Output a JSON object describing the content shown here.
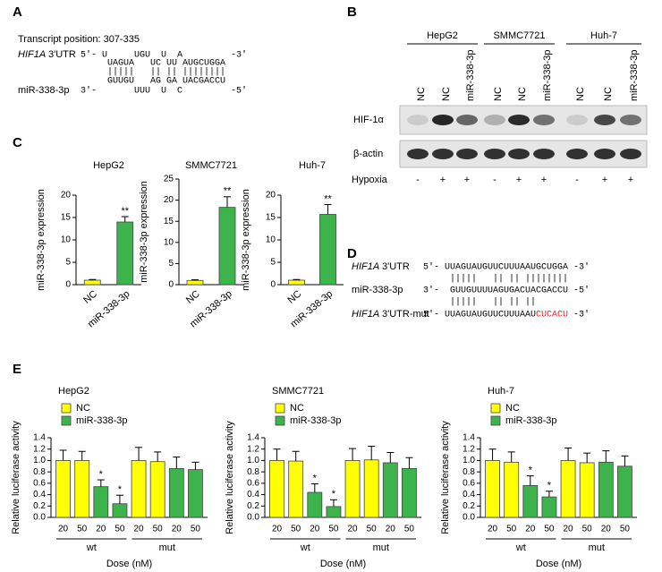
{
  "panel_labels": [
    "A",
    "B",
    "C",
    "D",
    "E"
  ],
  "panel_a": {
    "position": "Transcript position: 307-335",
    "gene": "HIF1A",
    "utr": "3'UTR",
    "mirna": "miR-338-3p",
    "lines": [
      "5'- U     UGU  U  A         -3'",
      "UAGUA   UC UU AUGCUGGA",
      "|||||   || || ||||||||",
      "GUUGU   AG GA UACGACCU",
      "3'-       UUU  U  C         -5'"
    ]
  },
  "panel_b": {
    "cell_lines": [
      "HepG2",
      "SMMC7721",
      "Huh-7"
    ],
    "lanes": [
      "NC",
      "NC",
      "miR-338-3p",
      "NC",
      "NC",
      "miR-338-3p",
      "NC",
      "NC",
      "miR-338-3p"
    ],
    "rows": [
      "HIF-1α",
      "β-actin"
    ],
    "hypoxia_label": "Hypoxia",
    "hypoxia": [
      "-",
      "+",
      "+",
      "-",
      "+",
      "+",
      "-",
      "+",
      "+"
    ]
  },
  "panel_d": {
    "utr_gene": "HIF1A",
    "utr_label": "3'UTR",
    "utr_sequence": "5'- UUAGUAUGUUCUUUAAUGCUGGA -3'",
    "pairs_top": "|||||   || || ||||||||",
    "mirna_label": "miR-338-3p",
    "mirna_sequence": "3'-  GUUGUUUUAGUGACUACGACCU -5'",
    "pairs_bottom": "|||||   || || ||",
    "mut_gene": "HIF1A",
    "mut_label": "3'UTR-mut",
    "mut_sequence": "5'- UUAGUAUGUUCUUUAAU",
    "mut_changed": "CUCACU",
    "mut_end": " -3'"
  },
  "chart_data": [
    {
      "type": "bar",
      "title": "HepG2",
      "ylabel": "miR-338-3p expression",
      "categories": [
        "NC",
        "miR-338-3p"
      ],
      "values": [
        1,
        14
      ],
      "errors": [
        0.15,
        1.2
      ],
      "colors": [
        "#ffff00",
        "#3cb44b"
      ],
      "annotations": [
        null,
        "**"
      ],
      "ylim": [
        0,
        20
      ],
      "yticks": [
        0,
        5,
        10,
        15,
        20
      ]
    },
    {
      "type": "bar",
      "title": "SMMC7721",
      "ylabel": "miR-338-3p expression",
      "categories": [
        "NC",
        "miR-338-3p"
      ],
      "values": [
        1,
        18.3
      ],
      "errors": [
        0.15,
        2.5
      ],
      "colors": [
        "#ffff00",
        "#3cb44b"
      ],
      "annotations": [
        null,
        "**"
      ],
      "ylim": [
        0,
        25
      ],
      "yticks": [
        0,
        5,
        10,
        15,
        20,
        25
      ]
    },
    {
      "type": "bar",
      "title": "Huh-7",
      "ylabel": "miR-338-3p expression",
      "categories": [
        "NC",
        "miR-338-3p"
      ],
      "values": [
        1,
        15.7
      ],
      "errors": [
        0.15,
        2.2
      ],
      "colors": [
        "#ffff00",
        "#3cb44b"
      ],
      "annotations": [
        null,
        "**"
      ],
      "ylim": [
        0,
        20
      ],
      "yticks": [
        0,
        5,
        10,
        15,
        20
      ]
    },
    {
      "type": "grouped_bar",
      "title": "HepG2",
      "xlabel": "Dose (nM)",
      "ylabel": "Relative luciferase activity",
      "categories": [
        "20",
        "50",
        "20",
        "50",
        "20",
        "50",
        "20",
        "50"
      ],
      "groups": [
        "wt",
        "mut"
      ],
      "legend": "top-left",
      "series": [
        {
          "name": "NC",
          "color": "#ffff00",
          "values": [
            1.0,
            1.0,
            null,
            null,
            1.0,
            0.98,
            null,
            null
          ],
          "errors": [
            0.18,
            0.16,
            null,
            null,
            0.23,
            0.17,
            null,
            null
          ]
        },
        {
          "name": "miR-338-3p",
          "color": "#3cb44b",
          "values": [
            null,
            null,
            0.54,
            0.24,
            null,
            null,
            0.86,
            0.84
          ],
          "errors": [
            null,
            null,
            0.12,
            0.15,
            null,
            null,
            0.2,
            0.13
          ],
          "annotations": [
            null,
            null,
            "*",
            "*",
            null,
            null,
            null,
            null
          ]
        }
      ],
      "ylim": [
        0,
        1.4
      ],
      "yticks": [
        {
          "value": 0,
          "label": "0.0"
        },
        0.2,
        0.4,
        0.6,
        0.8,
        {
          "value": 1,
          "label": "1.0"
        },
        1.2,
        1.4
      ]
    },
    {
      "type": "grouped_bar",
      "title": "SMMC7721",
      "xlabel": "Dose (nM)",
      "ylabel": "Relative luciferase activity",
      "categories": [
        "20",
        "50",
        "20",
        "50",
        "20",
        "50",
        "20",
        "50"
      ],
      "groups": [
        "wt",
        "mut"
      ],
      "legend": "top-left",
      "series": [
        {
          "name": "NC",
          "color": "#ffff00",
          "values": [
            1.0,
            0.99,
            null,
            null,
            1.0,
            1.01,
            null,
            null
          ],
          "errors": [
            0.2,
            0.17,
            null,
            null,
            0.21,
            0.24,
            null,
            null
          ]
        },
        {
          "name": "miR-338-3p",
          "color": "#3cb44b",
          "values": [
            null,
            null,
            0.44,
            0.19,
            null,
            null,
            0.96,
            0.86
          ],
          "errors": [
            null,
            null,
            0.15,
            0.12,
            null,
            null,
            0.18,
            0.19
          ],
          "annotations": [
            null,
            null,
            "*",
            "*",
            null,
            null,
            null,
            null
          ]
        }
      ],
      "ylim": [
        0,
        1.4
      ],
      "yticks": [
        {
          "value": 0,
          "label": "0.0"
        },
        0.2,
        0.4,
        0.6,
        0.8,
        {
          "value": 1,
          "label": "1.0"
        },
        1.2,
        1.4
      ]
    },
    {
      "type": "grouped_bar",
      "title": "Huh-7",
      "xlabel": "Dose (nM)",
      "ylabel": "Relative luciferase activity",
      "categories": [
        "20",
        "50",
        "20",
        "50",
        "20",
        "50",
        "20",
        "50"
      ],
      "groups": [
        "wt",
        "mut"
      ],
      "legend": "top-left",
      "series": [
        {
          "name": "NC",
          "color": "#ffff00",
          "values": [
            1.0,
            0.97,
            null,
            null,
            1.0,
            0.96,
            null,
            null
          ],
          "errors": [
            0.2,
            0.18,
            null,
            null,
            0.22,
            0.17,
            null,
            null
          ]
        },
        {
          "name": "miR-338-3p",
          "color": "#3cb44b",
          "values": [
            null,
            null,
            0.56,
            0.36,
            null,
            null,
            0.97,
            0.9
          ],
          "errors": [
            null,
            null,
            0.17,
            0.1,
            null,
            null,
            0.2,
            0.18
          ],
          "annotations": [
            null,
            null,
            "*",
            "*",
            null,
            null,
            null,
            null
          ]
        }
      ],
      "ylim": [
        0,
        1.4
      ],
      "yticks": [
        {
          "value": 0,
          "label": "0.0"
        },
        0.2,
        0.4,
        0.6,
        0.8,
        {
          "value": 1,
          "label": "1.0"
        },
        1.2,
        1.4
      ]
    }
  ]
}
